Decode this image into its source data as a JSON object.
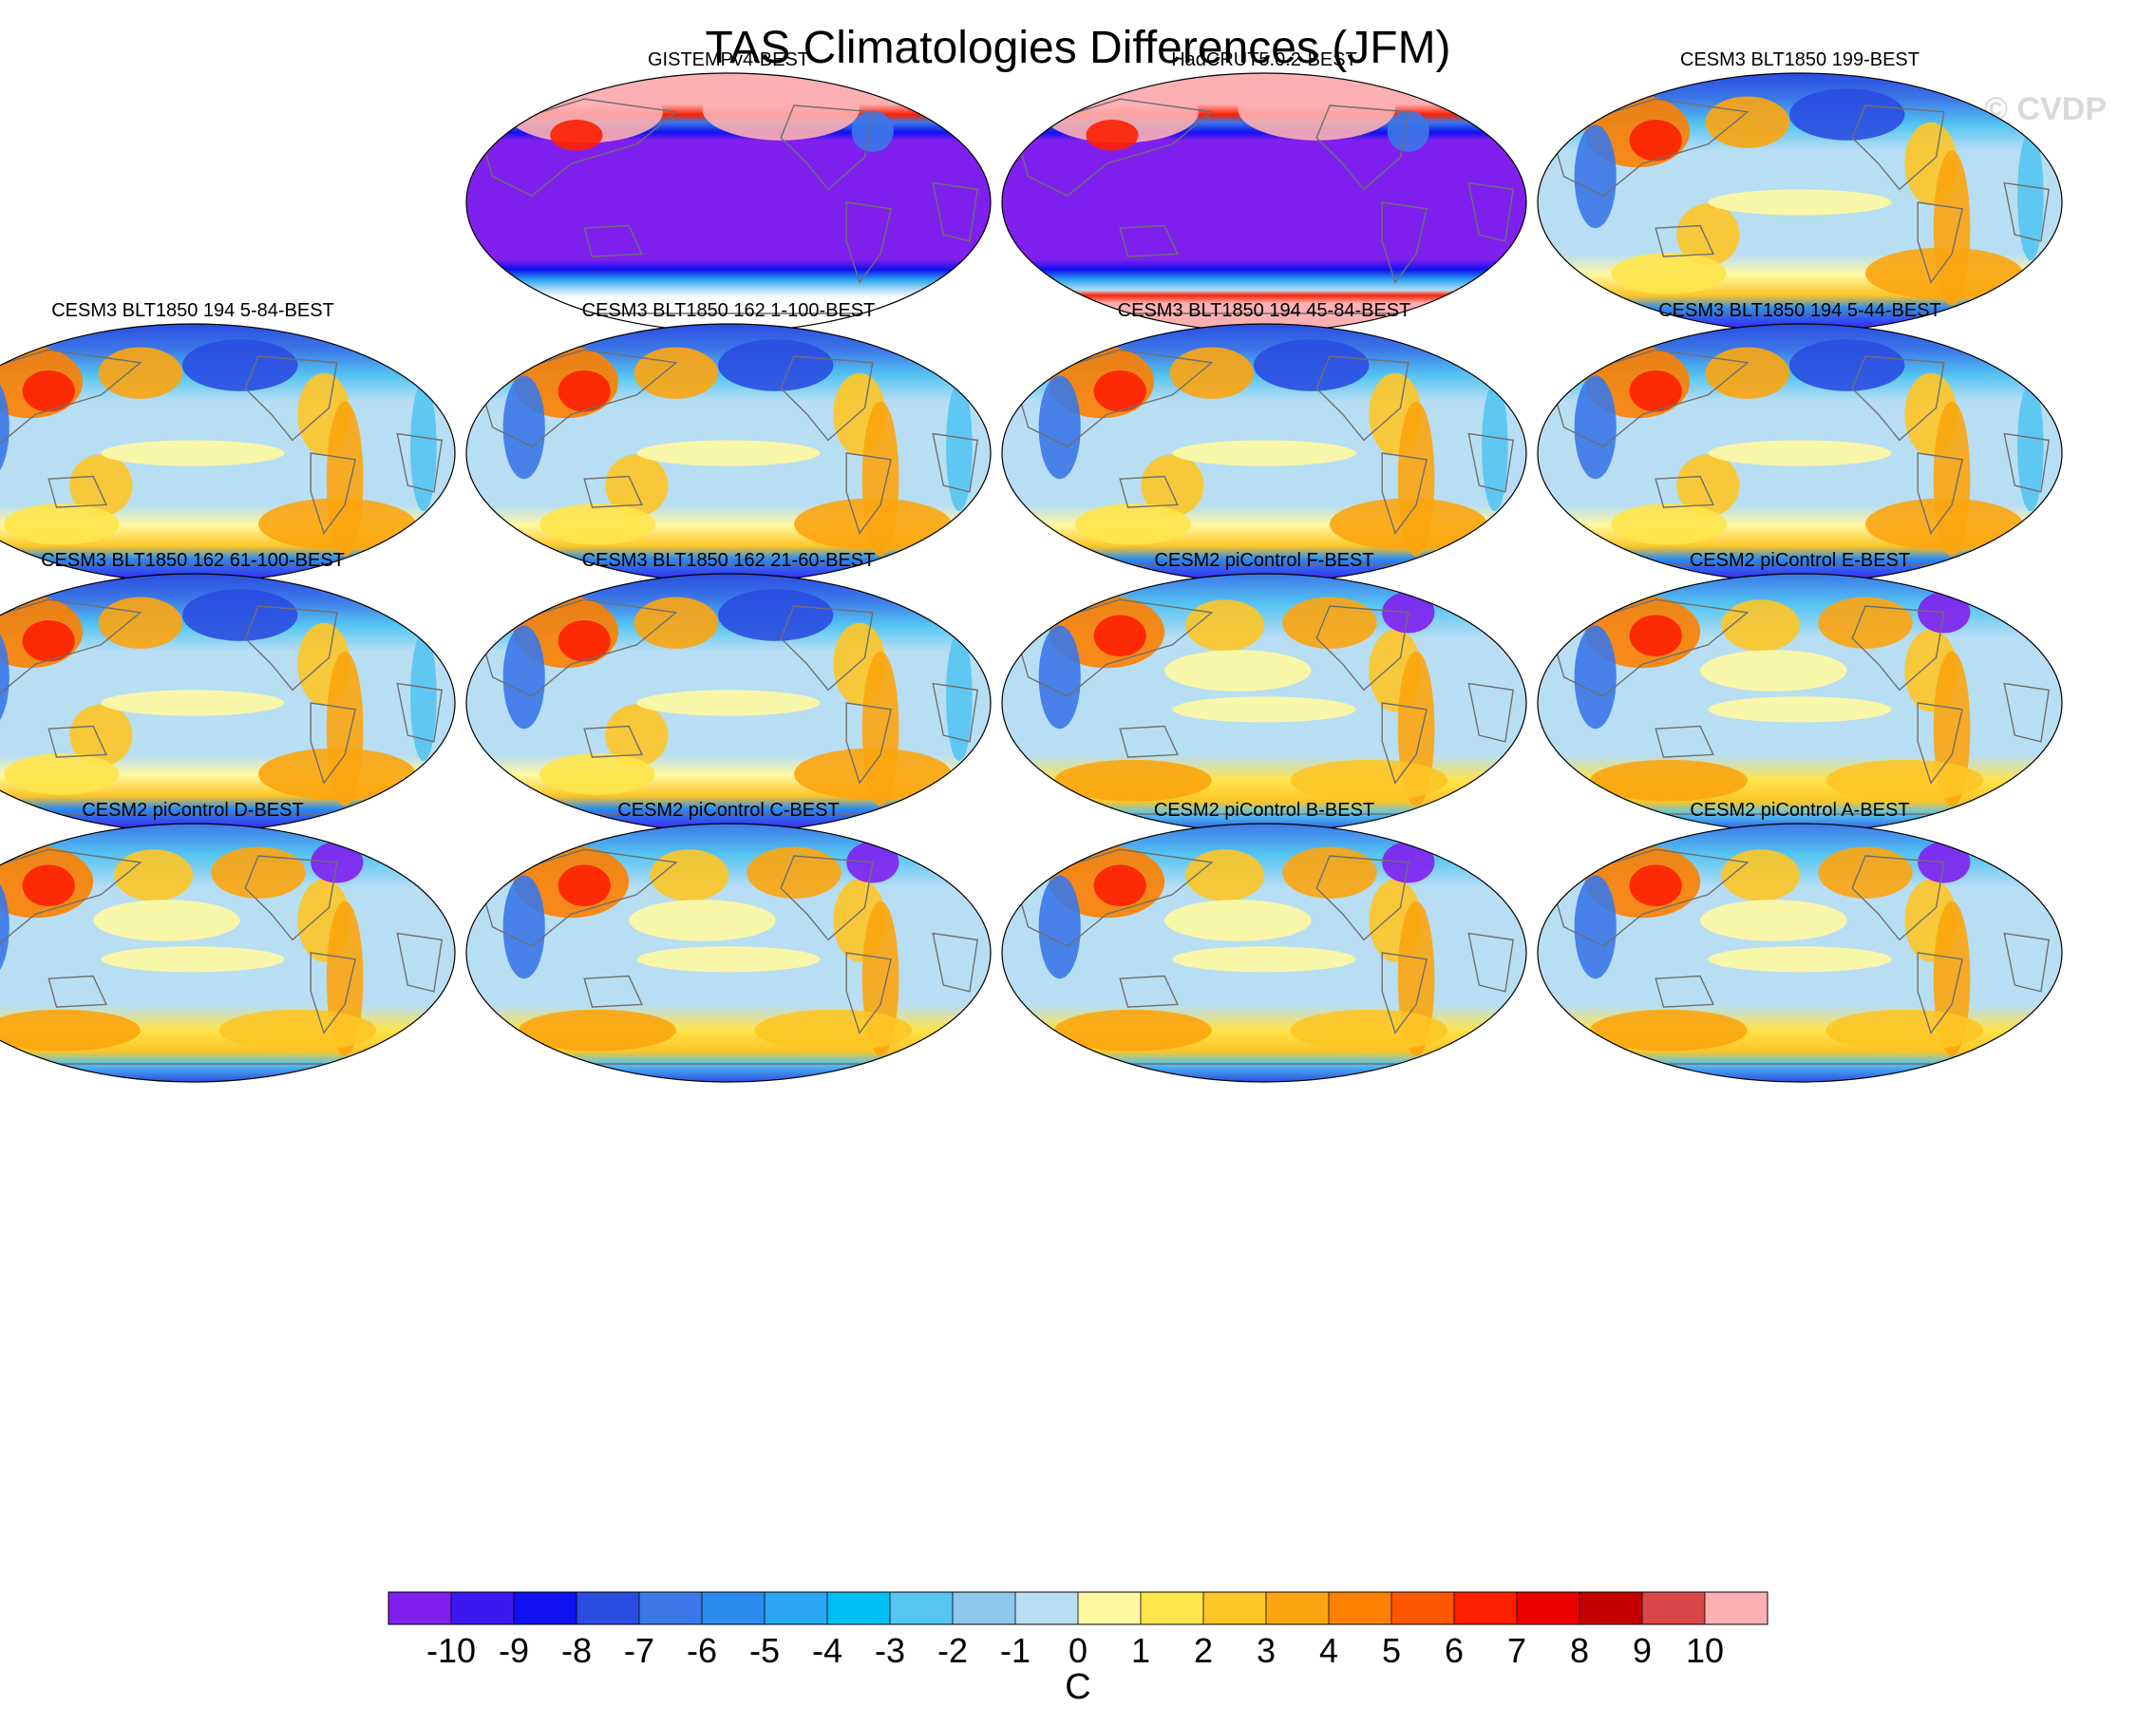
{
  "chart_data": {
    "type": "heatmap",
    "title": "TAS Climatologies Differences (JFM)",
    "watermark": "© CVDP",
    "projection": "robinson",
    "panels": [
      {
        "title": "GISTEMPv4-BEST",
        "pattern": "obs_gis"
      },
      {
        "title": "HadCRUT5.0.2-BEST",
        "pattern": "obs_had"
      },
      {
        "title": "CESM3 BLT1850 199-BEST",
        "pattern": "model"
      },
      {
        "title": "CESM3 BLT1850 194 5-84-BEST",
        "pattern": "model"
      },
      {
        "title": "CESM3 BLT1850 162 1-100-BEST",
        "pattern": "model"
      },
      {
        "title": "CESM3 BLT1850 194 45-84-BEST",
        "pattern": "model"
      },
      {
        "title": "CESM3 BLT1850 194 5-44-BEST",
        "pattern": "model"
      },
      {
        "title": "CESM3 BLT1850 162 61-100-BEST",
        "pattern": "model"
      },
      {
        "title": "CESM3 BLT1850 162 21-60-BEST",
        "pattern": "model"
      },
      {
        "title": "CESM2 piControl F-BEST",
        "pattern": "picontrol"
      },
      {
        "title": "CESM2 piControl E-BEST",
        "pattern": "picontrol"
      },
      {
        "title": "CESM2 piControl D-BEST",
        "pattern": "picontrol"
      },
      {
        "title": "CESM2 piControl C-BEST",
        "pattern": "picontrol"
      },
      {
        "title": "CESM2 piControl B-BEST",
        "pattern": "picontrol"
      },
      {
        "title": "CESM2 piControl A-BEST",
        "pattern": "picontrol"
      }
    ],
    "colorbar": {
      "label": "C",
      "levels": [
        -10,
        -9,
        -8,
        -7,
        -6,
        -5,
        -4,
        -3,
        -2,
        -1,
        0,
        1,
        2,
        3,
        4,
        5,
        6,
        7,
        8,
        9,
        10
      ],
      "tick_labels": [
        "-10",
        "-9",
        "-8",
        "-7",
        "-6",
        "-5",
        "-4",
        "-3",
        "-2",
        "-1",
        "0",
        "1",
        "2",
        "3",
        "4",
        "5",
        "6",
        "7",
        "8",
        "9",
        "10"
      ],
      "colors": [
        "#7f20ee",
        "#3d18ee",
        "#1010f0",
        "#2a4de0",
        "#3c78e8",
        "#2b8cf0",
        "#2aa6f2",
        "#00bff5",
        "#55c5f2",
        "#8ec8ea",
        "#b8def4",
        "#fff8a0",
        "#ffe44a",
        "#fdc526",
        "#fca510",
        "#fd8000",
        "#fd5700",
        "#fd2000",
        "#ec0000",
        "#c40000",
        "#d84848",
        "#fdb0b2"
      ]
    }
  }
}
